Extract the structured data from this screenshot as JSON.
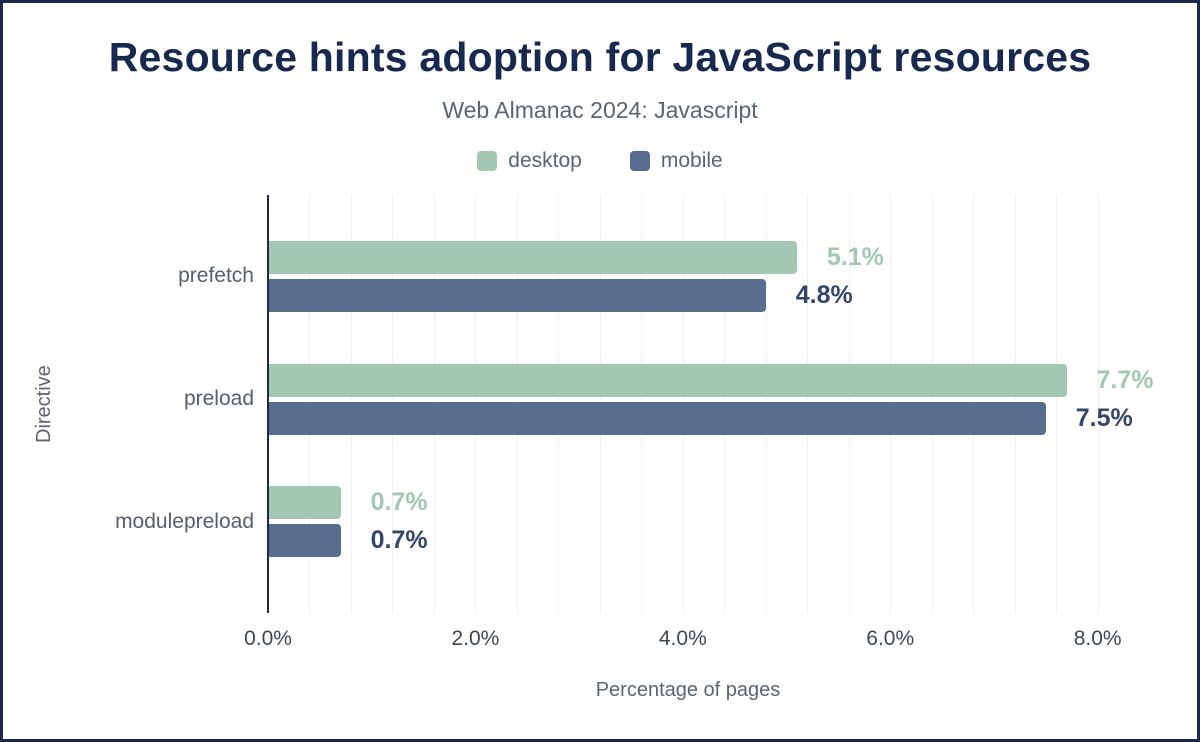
{
  "card": {
    "background": "#ffffff",
    "border_color": "#1b2a4a"
  },
  "title": "Resource hints adoption for JavaScript resources",
  "subtitle": "Web Almanac 2024: Javascript",
  "chart_data": {
    "type": "bar",
    "orientation": "horizontal",
    "title": "Resource hints adoption for JavaScript resources",
    "subtitle": "Web Almanac 2024: Javascript",
    "categories": [
      "prefetch",
      "preload",
      "modulepreload"
    ],
    "series": [
      {
        "name": "desktop",
        "color": "#a2c8b3",
        "label_color": "#a2c8b3",
        "values": [
          5.1,
          7.7,
          0.7
        ],
        "value_labels": [
          "5.1%",
          "7.7%",
          "0.7%"
        ]
      },
      {
        "name": "mobile",
        "color": "#596d8e",
        "label_color": "#35466a",
        "values": [
          4.8,
          7.5,
          0.7
        ],
        "value_labels": [
          "4.8%",
          "7.5%",
          "0.7%"
        ]
      }
    ],
    "xlabel": "Percentage of pages",
    "ylabel": "Directive",
    "xlim": [
      0,
      8.1
    ],
    "xticks": [
      0,
      2,
      4,
      6,
      8
    ],
    "xtick_labels": [
      "0.0%",
      "2.0%",
      "4.0%",
      "6.0%",
      "8.0%"
    ],
    "grid": true,
    "grid_step": 0.4,
    "legend_position": "top",
    "title_color": "#17294e",
    "axis_line_color": "#1b2a4a",
    "gridline_color": "#edeff2"
  }
}
